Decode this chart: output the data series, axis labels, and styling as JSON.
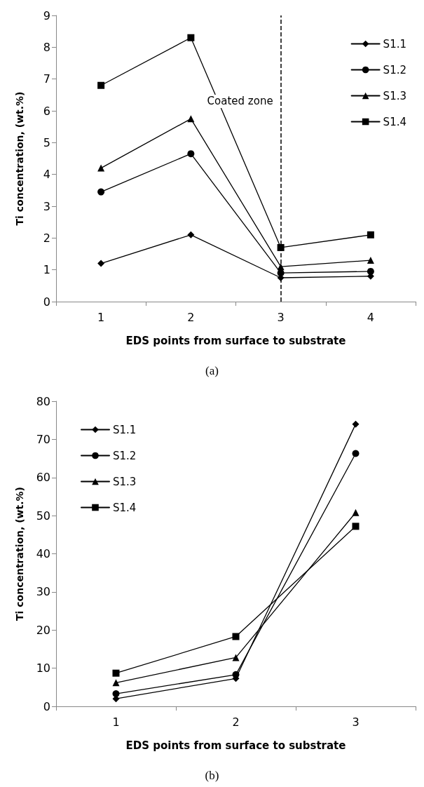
{
  "chart_data": [
    {
      "type": "line",
      "xlabel": "EDS points from surface to substrate",
      "ylabel": "Ti concentration, (wt.%)",
      "categories": [
        "1",
        "2",
        "3",
        "4"
      ],
      "series": [
        {
          "name": "S1.1",
          "color": "#000000",
          "marker": "diamond",
          "values": [
            1.2,
            2.1,
            0.75,
            0.8
          ]
        },
        {
          "name": "S1.2",
          "color": "#000000",
          "marker": "circle",
          "values": [
            3.45,
            4.65,
            0.9,
            0.95
          ]
        },
        {
          "name": "S1.3",
          "color": "#000000",
          "marker": "triangle",
          "values": [
            4.2,
            5.75,
            1.1,
            1.3
          ]
        },
        {
          "name": "S1.4",
          "color": "#000000",
          "marker": "square",
          "values": [
            6.8,
            8.3,
            1.7,
            2.1
          ]
        }
      ],
      "ylim": [
        0,
        9
      ],
      "yticks": [
        0,
        1,
        2,
        3,
        4,
        5,
        6,
        7,
        8,
        9
      ],
      "grid": false,
      "legend": "top right",
      "ref_lines": [
        {
          "axis": "x",
          "value": "3",
          "color": "#000000",
          "line_style": "dashed"
        }
      ],
      "annotations": [
        {
          "text": "Coated zone",
          "x": "3",
          "y": 6.3
        },
        "(a)"
      ]
    },
    {
      "type": "line",
      "xlabel": "EDS points from surface to substrate",
      "ylabel": "Ti concentration, (wt.%)",
      "categories": [
        "1",
        "2",
        "3"
      ],
      "series": [
        {
          "name": "S1.1",
          "color": "#000000",
          "marker": "diamond",
          "values": [
            2,
            7.3,
            74
          ]
        },
        {
          "name": "S1.2",
          "color": "#000000",
          "marker": "circle",
          "values": [
            3.3,
            8.3,
            66.3
          ]
        },
        {
          "name": "S1.3",
          "color": "#000000",
          "marker": "triangle",
          "values": [
            6.2,
            12.8,
            50.8
          ]
        },
        {
          "name": "S1.4",
          "color": "#000000",
          "marker": "square",
          "values": [
            8.7,
            18.3,
            47.2
          ]
        }
      ],
      "ylim": [
        0,
        80
      ],
      "yticks": [
        0,
        10,
        20,
        30,
        40,
        50,
        60,
        70,
        80
      ],
      "grid": false,
      "legend": "top left",
      "annotations": [
        "(b)"
      ]
    }
  ]
}
